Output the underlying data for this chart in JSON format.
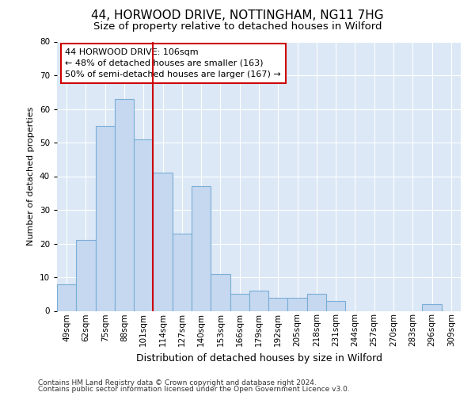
{
  "title1": "44, HORWOOD DRIVE, NOTTINGHAM, NG11 7HG",
  "title2": "Size of property relative to detached houses in Wilford",
  "xlabel": "Distribution of detached houses by size in Wilford",
  "ylabel": "Number of detached properties",
  "categories": [
    "49sqm",
    "62sqm",
    "75sqm",
    "88sqm",
    "101sqm",
    "114sqm",
    "127sqm",
    "140sqm",
    "153sqm",
    "166sqm",
    "179sqm",
    "192sqm",
    "205sqm",
    "218sqm",
    "231sqm",
    "244sqm",
    "257sqm",
    "270sqm",
    "283sqm",
    "296sqm",
    "309sqm"
  ],
  "values": [
    8,
    21,
    55,
    63,
    51,
    41,
    23,
    37,
    11,
    5,
    6,
    4,
    4,
    5,
    3,
    0,
    0,
    0,
    0,
    2,
    0
  ],
  "bar_color": "#c5d8f0",
  "bar_edge_color": "#7aaed6",
  "vline_x_index": 4.5,
  "vline_color": "#cc0000",
  "annotation_line1": "44 HORWOOD DRIVE: 106sqm",
  "annotation_line2": "← 48% of detached houses are smaller (163)",
  "annotation_line3": "50% of semi-detached houses are larger (167) →",
  "annotation_box_facecolor": "#ffffff",
  "annotation_box_edgecolor": "#cc0000",
  "ylim": [
    0,
    80
  ],
  "yticks": [
    0,
    10,
    20,
    30,
    40,
    50,
    60,
    70,
    80
  ],
  "footer1": "Contains HM Land Registry data © Crown copyright and database right 2024.",
  "footer2": "Contains public sector information licensed under the Open Government Licence v3.0.",
  "bg_color": "#ffffff",
  "plot_bg_color": "#dce8f5",
  "grid_color": "#ffffff",
  "title1_fontsize": 11,
  "title2_fontsize": 9.5,
  "ylabel_fontsize": 8,
  "xlabel_fontsize": 9,
  "tick_fontsize": 7.5,
  "footer_fontsize": 6.5
}
